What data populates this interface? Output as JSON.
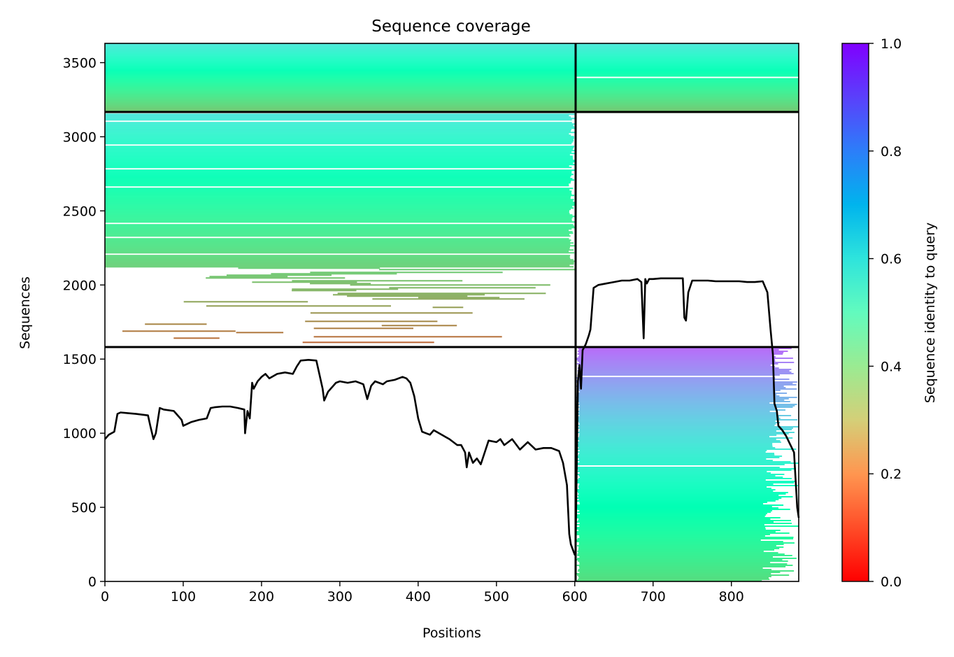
{
  "chart_data": {
    "type": "heatmap",
    "title": "Sequence coverage",
    "xlabel": "Positions",
    "ylabel": "Sequences",
    "colorbar_label": "Sequence identity to query",
    "xlim": [
      0,
      886
    ],
    "ylim": [
      0,
      3630
    ],
    "x_ticks": [
      0,
      100,
      200,
      300,
      400,
      500,
      600,
      700,
      800
    ],
    "y_ticks": [
      0,
      500,
      1000,
      1500,
      2000,
      2500,
      3000,
      3500
    ],
    "colorbar_ticks": [
      "0.0",
      "0.2",
      "0.4",
      "0.6",
      "0.8",
      "1.0"
    ],
    "colorbar_range": [
      0,
      1
    ],
    "colormap": "rainbow_r",
    "domain_boundary_x": 601,
    "group_boundaries_y": [
      1580,
      3160
    ],
    "blocks": [
      {
        "name": "group-1-domain-2",
        "x": [
          601,
          886
        ],
        "y": [
          0,
          1580
        ],
        "identity_range": [
          0.33,
          0.86
        ]
      },
      {
        "name": "group-2-domain-1",
        "x": [
          0,
          601
        ],
        "y": [
          1580,
          3160
        ],
        "identity_range": [
          0.12,
          0.64
        ]
      },
      {
        "name": "group-3-domain-1",
        "x": [
          0,
          601
        ],
        "y": [
          3160,
          3630
        ],
        "identity_range": [
          0.27,
          0.64
        ]
      },
      {
        "name": "group-3-domain-2",
        "x": [
          601,
          886
        ],
        "y": [
          3160,
          3630
        ],
        "identity_range": [
          0.27,
          0.64
        ]
      }
    ],
    "coverage_line": {
      "x": [
        0,
        5,
        12,
        16,
        20,
        30,
        40,
        55,
        58,
        62,
        65,
        70,
        75,
        88,
        98,
        100,
        110,
        120,
        130,
        135,
        140,
        150,
        160,
        170,
        178,
        179,
        182,
        185,
        188,
        190,
        195,
        200,
        205,
        210,
        220,
        230,
        240,
        245,
        250,
        260,
        270,
        278,
        280,
        285,
        295,
        300,
        310,
        320,
        330,
        335,
        340,
        345,
        350,
        355,
        360,
        370,
        380,
        385,
        390,
        395,
        400,
        405,
        410,
        415,
        420,
        430,
        440,
        450,
        455,
        460,
        462,
        465,
        470,
        475,
        480,
        490,
        500,
        505,
        510,
        520,
        530,
        540,
        550,
        560,
        570,
        580,
        585,
        590,
        593,
        595,
        600,
        601,
        604,
        606,
        608,
        610,
        614,
        618,
        620,
        624,
        630,
        640,
        650,
        660,
        670,
        680,
        685,
        688,
        690,
        692,
        695,
        700,
        710,
        720,
        730,
        738,
        740,
        742,
        745,
        750,
        760,
        770,
        780,
        790,
        800,
        810,
        820,
        830,
        840,
        846,
        850,
        853,
        855,
        858,
        860,
        865,
        870,
        880,
        884,
        886
      ],
      "y": [
        960,
        990,
        1010,
        1130,
        1140,
        1135,
        1130,
        1120,
        1050,
        960,
        1000,
        1170,
        1160,
        1150,
        1090,
        1050,
        1075,
        1090,
        1100,
        1170,
        1175,
        1180,
        1180,
        1170,
        1160,
        1000,
        1150,
        1100,
        1340,
        1300,
        1350,
        1380,
        1400,
        1370,
        1400,
        1410,
        1400,
        1450,
        1490,
        1495,
        1490,
        1300,
        1220,
        1280,
        1340,
        1350,
        1340,
        1350,
        1330,
        1230,
        1320,
        1350,
        1340,
        1330,
        1350,
        1360,
        1380,
        1370,
        1340,
        1250,
        1100,
        1010,
        1000,
        990,
        1020,
        990,
        960,
        920,
        920,
        870,
        770,
        870,
        800,
        830,
        790,
        950,
        940,
        960,
        920,
        960,
        890,
        940,
        890,
        900,
        900,
        880,
        800,
        650,
        320,
        250,
        180,
        200,
        1350,
        1460,
        1300,
        1560,
        1600,
        1660,
        1700,
        1980,
        2000,
        2010,
        2020,
        2030,
        2030,
        2040,
        2020,
        1640,
        2040,
        2010,
        2040,
        2040,
        2045,
        2045,
        2045,
        2045,
        1780,
        1760,
        1950,
        2030,
        2030,
        2030,
        2025,
        2025,
        2025,
        2025,
        2020,
        2020,
        2025,
        1950,
        1700,
        1530,
        1200,
        1150,
        1050,
        1020,
        980,
        870,
        500,
        430,
        420
      ]
    }
  }
}
